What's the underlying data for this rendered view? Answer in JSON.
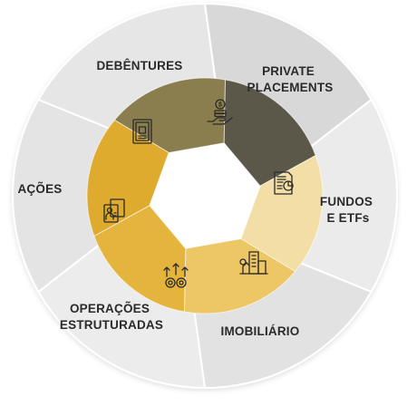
{
  "diagram": {
    "segments": [
      {
        "id": "debentures",
        "lines": [
          "DEBÊNTURES"
        ],
        "icon": "certificate-icon",
        "ring_color": "#8a7d4e",
        "outer_color": "#e6e6e6"
      },
      {
        "id": "private-placements",
        "lines": [
          "PRIVATE",
          "PLACEMENTS"
        ],
        "icon": "money-hand-icon",
        "ring_color": "#5c5849",
        "outer_color": "#d8d8d8"
      },
      {
        "id": "fundos-etfs",
        "lines": [
          "FUNDOS",
          "E ETFs"
        ],
        "icon": "report-chart-icon",
        "ring_color": "#f3dfa6",
        "outer_color": "#ebebeb"
      },
      {
        "id": "imobiliario",
        "lines": [
          "IMOBILIÁRIO"
        ],
        "icon": "buildings-icon",
        "ring_color": "#edc766",
        "outer_color": "#e2e2e2"
      },
      {
        "id": "operacoes-estruturadas",
        "lines": [
          "OPERAÇÕES",
          "ESTRUTURADAS"
        ],
        "icon": "gears-arrows-icon",
        "ring_color": "#e4b43d",
        "outer_color": "#ececec"
      },
      {
        "id": "acoes",
        "lines": [
          "AÇÕES"
        ],
        "icon": "documents-icon",
        "ring_color": "#deab2e",
        "outer_color": "#e4e4e4"
      }
    ],
    "colors": {
      "center": "#ffffff",
      "divider": "#ffffff",
      "text": "#2a2a2a",
      "icon_stroke": "#2a2a2a"
    }
  }
}
